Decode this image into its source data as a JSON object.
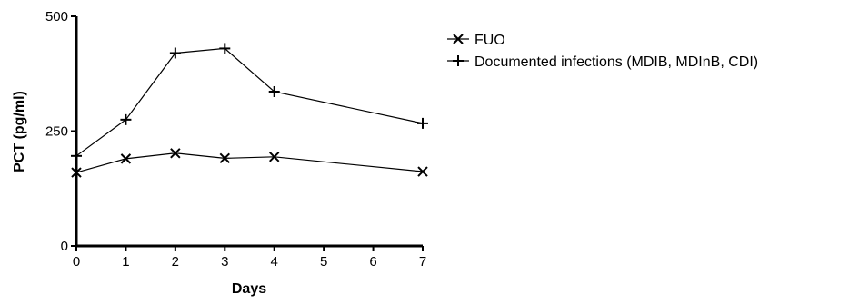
{
  "chart_data": {
    "type": "line",
    "title": "",
    "xlabel": "Days",
    "ylabel": "PCT (pg/ml)",
    "x": [
      0,
      1,
      2,
      3,
      4,
      7
    ],
    "xticks": [
      "0",
      "1",
      "2",
      "3",
      "4",
      "5",
      "6",
      "7"
    ],
    "yticks": [
      "0",
      "250",
      "500"
    ],
    "xlim": [
      0,
      7
    ],
    "ylim": [
      0,
      500
    ],
    "grid": false,
    "legend_position": "right",
    "series": [
      {
        "name": "FUO",
        "marker": "x",
        "color": "#000000",
        "values": [
          160,
          190,
          202,
          191,
          194,
          162
        ]
      },
      {
        "name": "Documented infections (MDIB, MDInB, CDI)",
        "marker": "+",
        "color": "#000000",
        "values": [
          196,
          275,
          420,
          430,
          336,
          267
        ]
      }
    ]
  }
}
